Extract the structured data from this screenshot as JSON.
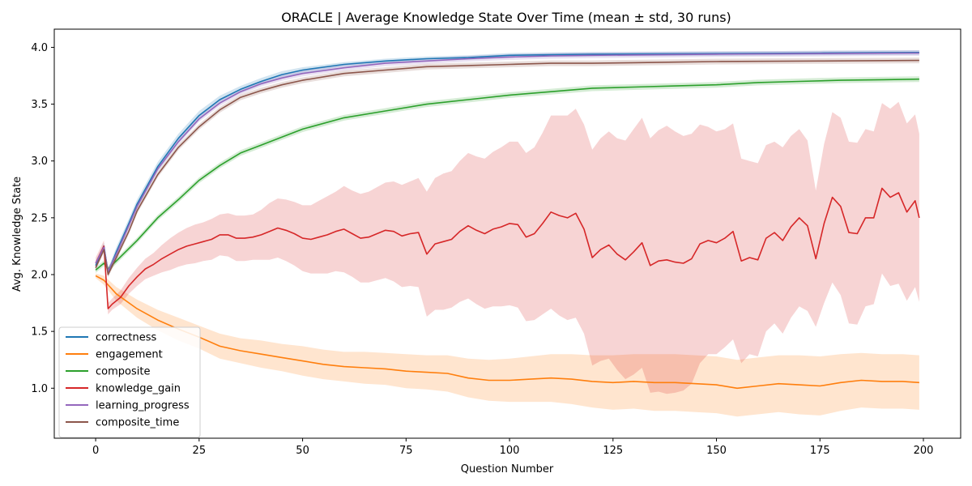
{
  "chart_data": {
    "type": "line",
    "title": "ORACLE | Average Knowledge State Over Time (mean ± std, 30 runs)",
    "xlabel": "Question Number",
    "ylabel": "Avg. Knowledge State",
    "xlim": [
      -10,
      209
    ],
    "ylim": [
      0.56,
      4.16
    ],
    "xticks": [
      0,
      25,
      50,
      75,
      100,
      125,
      150,
      175,
      200
    ],
    "yticks": [
      1.0,
      1.5,
      2.0,
      2.5,
      3.0,
      3.5,
      4.0
    ],
    "grid": false,
    "legend_position": "lower-left",
    "series": [
      {
        "name": "correctness",
        "color": "#1f77b4",
        "x": [
          0,
          2,
          3,
          5,
          8,
          10,
          15,
          20,
          25,
          30,
          35,
          40,
          45,
          50,
          60,
          70,
          80,
          90,
          100,
          110,
          120,
          150,
          175,
          199
        ],
        "mean": [
          2.08,
          2.25,
          2.02,
          2.2,
          2.45,
          2.62,
          2.95,
          3.2,
          3.4,
          3.54,
          3.63,
          3.7,
          3.76,
          3.8,
          3.85,
          3.88,
          3.9,
          3.91,
          3.93,
          3.935,
          3.94,
          3.945,
          3.95,
          3.955
        ],
        "std": [
          0.03,
          0.03,
          0.03,
          0.04,
          0.04,
          0.04,
          0.04,
          0.04,
          0.04,
          0.035,
          0.03,
          0.03,
          0.03,
          0.025,
          0.02,
          0.02,
          0.02,
          0.02,
          0.02,
          0.02,
          0.02,
          0.02,
          0.02,
          0.02
        ]
      },
      {
        "name": "engagement",
        "color": "#ff7f0e",
        "x": [
          0,
          2,
          5,
          10,
          15,
          20,
          25,
          30,
          35,
          40,
          45,
          50,
          55,
          60,
          65,
          70,
          75,
          80,
          85,
          90,
          95,
          100,
          105,
          110,
          115,
          120,
          125,
          130,
          135,
          140,
          145,
          150,
          155,
          160,
          165,
          170,
          175,
          180,
          185,
          190,
          195,
          199
        ],
        "mean": [
          1.99,
          1.95,
          1.83,
          1.7,
          1.6,
          1.52,
          1.45,
          1.37,
          1.33,
          1.3,
          1.27,
          1.24,
          1.21,
          1.19,
          1.18,
          1.17,
          1.15,
          1.14,
          1.13,
          1.09,
          1.07,
          1.07,
          1.08,
          1.09,
          1.08,
          1.06,
          1.05,
          1.06,
          1.05,
          1.05,
          1.04,
          1.03,
          1.0,
          1.02,
          1.04,
          1.03,
          1.02,
          1.05,
          1.07,
          1.06,
          1.06,
          1.05
        ],
        "std": [
          0.02,
          0.04,
          0.06,
          0.08,
          0.09,
          0.1,
          0.1,
          0.11,
          0.11,
          0.12,
          0.12,
          0.13,
          0.13,
          0.13,
          0.14,
          0.14,
          0.15,
          0.15,
          0.16,
          0.17,
          0.18,
          0.19,
          0.2,
          0.21,
          0.22,
          0.23,
          0.24,
          0.24,
          0.25,
          0.25,
          0.25,
          0.25,
          0.25,
          0.25,
          0.25,
          0.26,
          0.26,
          0.25,
          0.24,
          0.24,
          0.24,
          0.24
        ]
      },
      {
        "name": "composite",
        "color": "#2ca02c",
        "x": [
          0,
          2,
          3,
          5,
          10,
          15,
          20,
          25,
          30,
          35,
          40,
          45,
          50,
          60,
          70,
          80,
          90,
          100,
          110,
          120,
          130,
          140,
          150,
          160,
          170,
          180,
          190,
          199
        ],
        "mean": [
          2.04,
          2.1,
          2.05,
          2.12,
          2.3,
          2.5,
          2.66,
          2.83,
          2.96,
          3.07,
          3.14,
          3.21,
          3.28,
          3.38,
          3.44,
          3.5,
          3.54,
          3.58,
          3.61,
          3.64,
          3.65,
          3.66,
          3.67,
          3.69,
          3.7,
          3.71,
          3.715,
          3.72
        ]
      },
      {
        "name": "knowledge_gain",
        "color": "#d62728",
        "x": [
          0,
          2,
          3,
          4,
          6,
          8,
          10,
          12,
          14,
          16,
          18,
          20,
          22,
          24,
          26,
          28,
          30,
          32,
          34,
          36,
          38,
          40,
          42,
          44,
          46,
          48,
          50,
          52,
          54,
          56,
          58,
          60,
          62,
          64,
          66,
          68,
          70,
          72,
          74,
          76,
          78,
          80,
          82,
          84,
          86,
          88,
          90,
          92,
          94,
          96,
          98,
          100,
          102,
          104,
          106,
          108,
          110,
          112,
          114,
          116,
          118,
          120,
          122,
          124,
          126,
          128,
          130,
          132,
          134,
          136,
          138,
          140,
          142,
          144,
          146,
          148,
          150,
          152,
          154,
          156,
          158,
          160,
          162,
          164,
          166,
          168,
          170,
          172,
          174,
          176,
          178,
          180,
          182,
          184,
          186,
          188,
          190,
          192,
          194,
          196,
          198,
          199
        ],
        "mean": [
          2.1,
          2.25,
          1.7,
          1.74,
          1.8,
          1.9,
          1.98,
          2.05,
          2.09,
          2.14,
          2.18,
          2.22,
          2.25,
          2.27,
          2.29,
          2.31,
          2.35,
          2.35,
          2.32,
          2.32,
          2.33,
          2.35,
          2.38,
          2.41,
          2.39,
          2.36,
          2.32,
          2.31,
          2.33,
          2.35,
          2.38,
          2.4,
          2.36,
          2.32,
          2.33,
          2.36,
          2.39,
          2.38,
          2.34,
          2.36,
          2.37,
          2.18,
          2.27,
          2.29,
          2.31,
          2.38,
          2.43,
          2.39,
          2.36,
          2.4,
          2.42,
          2.45,
          2.44,
          2.33,
          2.36,
          2.45,
          2.55,
          2.52,
          2.5,
          2.54,
          2.4,
          2.15,
          2.22,
          2.26,
          2.18,
          2.13,
          2.2,
          2.28,
          2.08,
          2.12,
          2.13,
          2.11,
          2.1,
          2.14,
          2.27,
          2.3,
          2.28,
          2.32,
          2.38,
          2.12,
          2.15,
          2.13,
          2.32,
          2.37,
          2.3,
          2.42,
          2.5,
          2.43,
          2.14,
          2.45,
          2.68,
          2.6,
          2.37,
          2.36,
          2.5,
          2.5,
          2.76,
          2.68,
          2.72,
          2.55,
          2.65,
          2.5
        ],
        "std": [
          0.05,
          0.05,
          0.05,
          0.05,
          0.06,
          0.07,
          0.08,
          0.09,
          0.1,
          0.12,
          0.14,
          0.15,
          0.16,
          0.17,
          0.17,
          0.18,
          0.18,
          0.19,
          0.2,
          0.2,
          0.2,
          0.22,
          0.25,
          0.26,
          0.27,
          0.28,
          0.29,
          0.3,
          0.32,
          0.34,
          0.35,
          0.38,
          0.38,
          0.39,
          0.4,
          0.41,
          0.42,
          0.44,
          0.45,
          0.46,
          0.48,
          0.55,
          0.58,
          0.6,
          0.6,
          0.62,
          0.64,
          0.65,
          0.66,
          0.68,
          0.7,
          0.72,
          0.73,
          0.74,
          0.76,
          0.8,
          0.85,
          0.88,
          0.9,
          0.92,
          0.92,
          0.95,
          0.98,
          1.0,
          1.02,
          1.05,
          1.08,
          1.1,
          1.12,
          1.15,
          1.18,
          1.15,
          1.12,
          1.1,
          1.05,
          1.0,
          0.98,
          0.96,
          0.95,
          0.9,
          0.85,
          0.85,
          0.82,
          0.8,
          0.82,
          0.8,
          0.78,
          0.75,
          0.6,
          0.7,
          0.75,
          0.78,
          0.8,
          0.8,
          0.78,
          0.76,
          0.75,
          0.78,
          0.8,
          0.78,
          0.76,
          0.74
        ]
      },
      {
        "name": "learning_progress",
        "color": "#9467bd",
        "x": [
          0,
          2,
          3,
          5,
          8,
          10,
          15,
          20,
          25,
          30,
          35,
          40,
          45,
          50,
          60,
          70,
          80,
          90,
          100,
          110,
          120,
          150,
          175,
          199
        ],
        "mean": [
          2.1,
          2.24,
          2.03,
          2.18,
          2.43,
          2.6,
          2.93,
          3.17,
          3.37,
          3.51,
          3.61,
          3.68,
          3.73,
          3.77,
          3.82,
          3.86,
          3.88,
          3.9,
          3.915,
          3.925,
          3.93,
          3.94,
          3.945,
          3.95
        ]
      },
      {
        "name": "composite_time",
        "color": "#8c564b",
        "x": [
          0,
          2,
          3,
          5,
          8,
          10,
          15,
          20,
          25,
          30,
          35,
          40,
          45,
          50,
          60,
          70,
          80,
          90,
          100,
          110,
          120,
          130,
          140,
          150,
          175,
          199
        ],
        "mean": [
          2.06,
          2.22,
          2.0,
          2.15,
          2.38,
          2.56,
          2.88,
          3.12,
          3.3,
          3.45,
          3.56,
          3.62,
          3.67,
          3.71,
          3.77,
          3.8,
          3.83,
          3.84,
          3.85,
          3.86,
          3.86,
          3.865,
          3.87,
          3.875,
          3.88,
          3.885
        ]
      }
    ]
  }
}
